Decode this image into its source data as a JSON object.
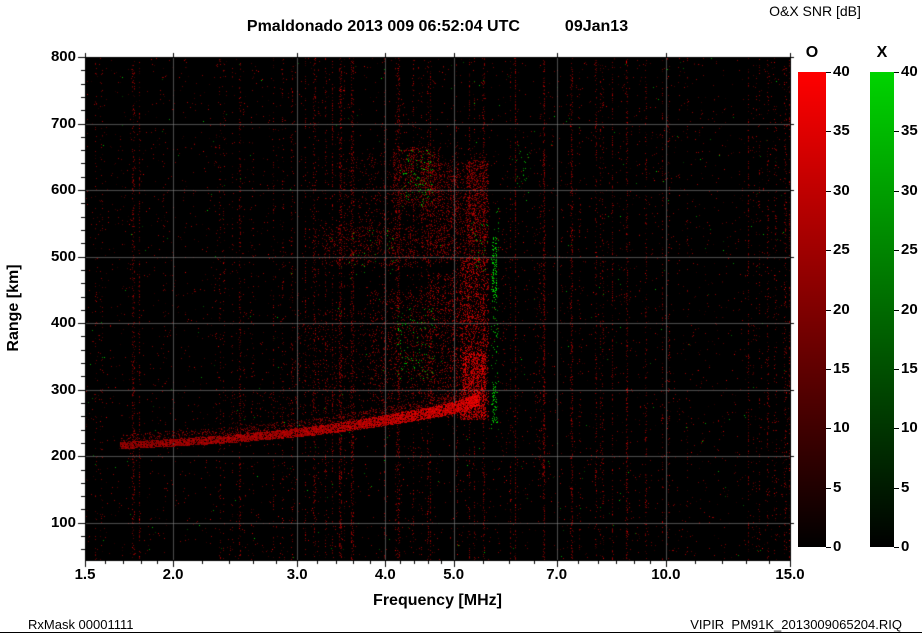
{
  "header": {
    "title": "Pmaldonado 2013 009 06:52:04 UTC",
    "date": "09Jan13",
    "snr_label": "O&X SNR [dB]"
  },
  "footer": {
    "left": "RxMask 00001111",
    "right": "VIPIR  PM91K_2013009065204.RIQ"
  },
  "chart_data": {
    "type": "heatmap",
    "title": "Pmaldonado 2013 009 06:52:04 UTC",
    "date_label": "09Jan13",
    "xlabel": "Frequency [MHz]",
    "ylabel": "Range [km]",
    "x_scale": "log",
    "xlim": [
      1.5,
      15
    ],
    "ylim": [
      44,
      800
    ],
    "x_ticks": [
      {
        "v": 1.5,
        "label": "1.5"
      },
      {
        "v": 2.0,
        "label": "2.0"
      },
      {
        "v": 3.0,
        "label": "3.0"
      },
      {
        "v": 4.0,
        "label": "4.0"
      },
      {
        "v": 5.0,
        "label": "5.0"
      },
      {
        "v": 7.0,
        "label": "7.0"
      },
      {
        "v": 10.0,
        "label": "10.0"
      },
      {
        "v": 15.0,
        "label": "15.0"
      }
    ],
    "x_minor_ticks": [
      1.6,
      1.7,
      1.8,
      1.9,
      2.2,
      2.4,
      2.6,
      2.8,
      3.2,
      3.4,
      3.6,
      3.8,
      4.2,
      4.4,
      4.6,
      4.8,
      5.5,
      6,
      6.5,
      7.5,
      8,
      8.5,
      9,
      9.5,
      11,
      12,
      13,
      14
    ],
    "y_ticks": [
      100,
      200,
      300,
      400,
      500,
      600,
      700,
      800
    ],
    "y_minor_step": 20,
    "x_grid": [
      2,
      3,
      4,
      5,
      7,
      10
    ],
    "y_grid": [
      100,
      200,
      300,
      400,
      500,
      600,
      700
    ],
    "colorbar": {
      "title": "O&X SNR [dB]",
      "units": "dB",
      "ticks": [
        0,
        5,
        10,
        15,
        20,
        25,
        30,
        35,
        40
      ],
      "range": [
        0,
        40
      ],
      "bars": [
        {
          "name": "O",
          "color_low": "#000000",
          "color_high": "#ff0000"
        },
        {
          "name": "X",
          "color_low": "#000000",
          "color_high": "#00d400"
        }
      ]
    },
    "echo_trace_km": [
      [
        1.68,
        215
      ],
      [
        2.0,
        219
      ],
      [
        2.4,
        224
      ],
      [
        2.8,
        230
      ],
      [
        3.2,
        236
      ],
      [
        3.6,
        243
      ],
      [
        4.0,
        250
      ],
      [
        4.4,
        257
      ],
      [
        4.8,
        264
      ],
      [
        5.1,
        270
      ],
      [
        5.3,
        276
      ],
      [
        5.45,
        283
      ]
    ],
    "critical_frequency_mhz": 5.6,
    "render": {
      "seed": 1337,
      "bg": "#000000",
      "grid_color": "#808080",
      "grid_alpha": 0.6,
      "noise": {
        "base": 0.012,
        "stripes": 85,
        "stripe_max": 0.4,
        "green_base": 0.0007
      },
      "trace": {
        "thick0": 6,
        "thick1": 16,
        "tail": 12,
        "b0": 150,
        "b1": 235
      },
      "regions": [
        {
          "c": "r",
          "f": [
            2.4,
            2.95
          ],
          "r": [
            238,
            300
          ],
          "d": 0.04,
          "b": [
            45,
            120
          ]
        },
        {
          "c": "r",
          "f": [
            2.95,
            3.8
          ],
          "r": [
            262,
            420
          ],
          "d": 0.055,
          "b": [
            50,
            140
          ]
        },
        {
          "c": "r",
          "f": [
            3.8,
            4.6
          ],
          "r": [
            260,
            450
          ],
          "d": 0.1,
          "b": [
            55,
            165
          ]
        },
        {
          "c": "r",
          "f": [
            4.6,
            5.15
          ],
          "r": [
            258,
            475
          ],
          "d": 0.17,
          "b": [
            60,
            185
          ]
        },
        {
          "c": "r",
          "f": [
            5.1,
            5.62
          ],
          "r": [
            255,
            500
          ],
          "d": 0.3,
          "b": [
            80,
            220
          ]
        },
        {
          "c": "r",
          "f": [
            5.15,
            5.55
          ],
          "r": [
            255,
            355
          ],
          "d": 0.35,
          "b": [
            120,
            255
          ]
        },
        {
          "c": "r",
          "f": [
            3.25,
            4.45
          ],
          "r": [
            485,
            545
          ],
          "d": 0.13,
          "b": [
            60,
            165
          ]
        },
        {
          "c": "r",
          "f": [
            3.45,
            5.6
          ],
          "r": [
            500,
            655
          ],
          "d": 0.07,
          "b": [
            50,
            140
          ]
        },
        {
          "c": "r",
          "f": [
            4.1,
            4.8
          ],
          "r": [
            575,
            665
          ],
          "d": 0.16,
          "b": [
            60,
            175
          ]
        },
        {
          "c": "r",
          "f": [
            4.5,
            5.6
          ],
          "r": [
            490,
            640
          ],
          "d": 0.15,
          "b": [
            60,
            175
          ]
        },
        {
          "c": "r",
          "f": [
            5.2,
            5.62
          ],
          "r": [
            520,
            645
          ],
          "d": 0.22,
          "b": [
            70,
            195
          ]
        },
        {
          "c": "r",
          "f": [
            6.5,
            6.75
          ],
          "r": [
            150,
            560
          ],
          "d": 0.05,
          "b": [
            50,
            150
          ]
        },
        {
          "c": "r",
          "f": [
            5.85,
            6.0
          ],
          "r": [
            200,
            560
          ],
          "d": 0.035,
          "b": [
            45,
            130
          ]
        },
        {
          "c": "g",
          "f": [
            5.64,
            5.8
          ],
          "r": [
            230,
            575
          ],
          "d": 0.06,
          "b": [
            80,
            220
          ]
        },
        {
          "c": "g",
          "f": [
            5.66,
            5.76
          ],
          "r": [
            430,
            530
          ],
          "d": 0.3,
          "b": [
            120,
            255
          ]
        },
        {
          "c": "g",
          "f": [
            5.66,
            5.76
          ],
          "r": [
            250,
            315
          ],
          "d": 0.22,
          "b": [
            110,
            240
          ]
        },
        {
          "c": "g",
          "f": [
            4.15,
            4.7
          ],
          "r": [
            315,
            425
          ],
          "d": 0.035,
          "b": [
            90,
            220
          ]
        },
        {
          "c": "g",
          "f": [
            4.2,
            4.68
          ],
          "r": [
            575,
            660
          ],
          "d": 0.05,
          "b": [
            90,
            220
          ]
        },
        {
          "c": "g",
          "f": [
            3.55,
            4.15
          ],
          "r": [
            470,
            540
          ],
          "d": 0.018,
          "b": [
            80,
            200
          ]
        },
        {
          "c": "g",
          "f": [
            6.1,
            6.4
          ],
          "r": [
            580,
            670
          ],
          "d": 0.03,
          "b": [
            80,
            200
          ]
        },
        {
          "c": "g",
          "f": [
            5.3,
            5.6
          ],
          "r": [
            480,
            560
          ],
          "d": 0.03,
          "b": [
            90,
            220
          ]
        }
      ]
    }
  }
}
